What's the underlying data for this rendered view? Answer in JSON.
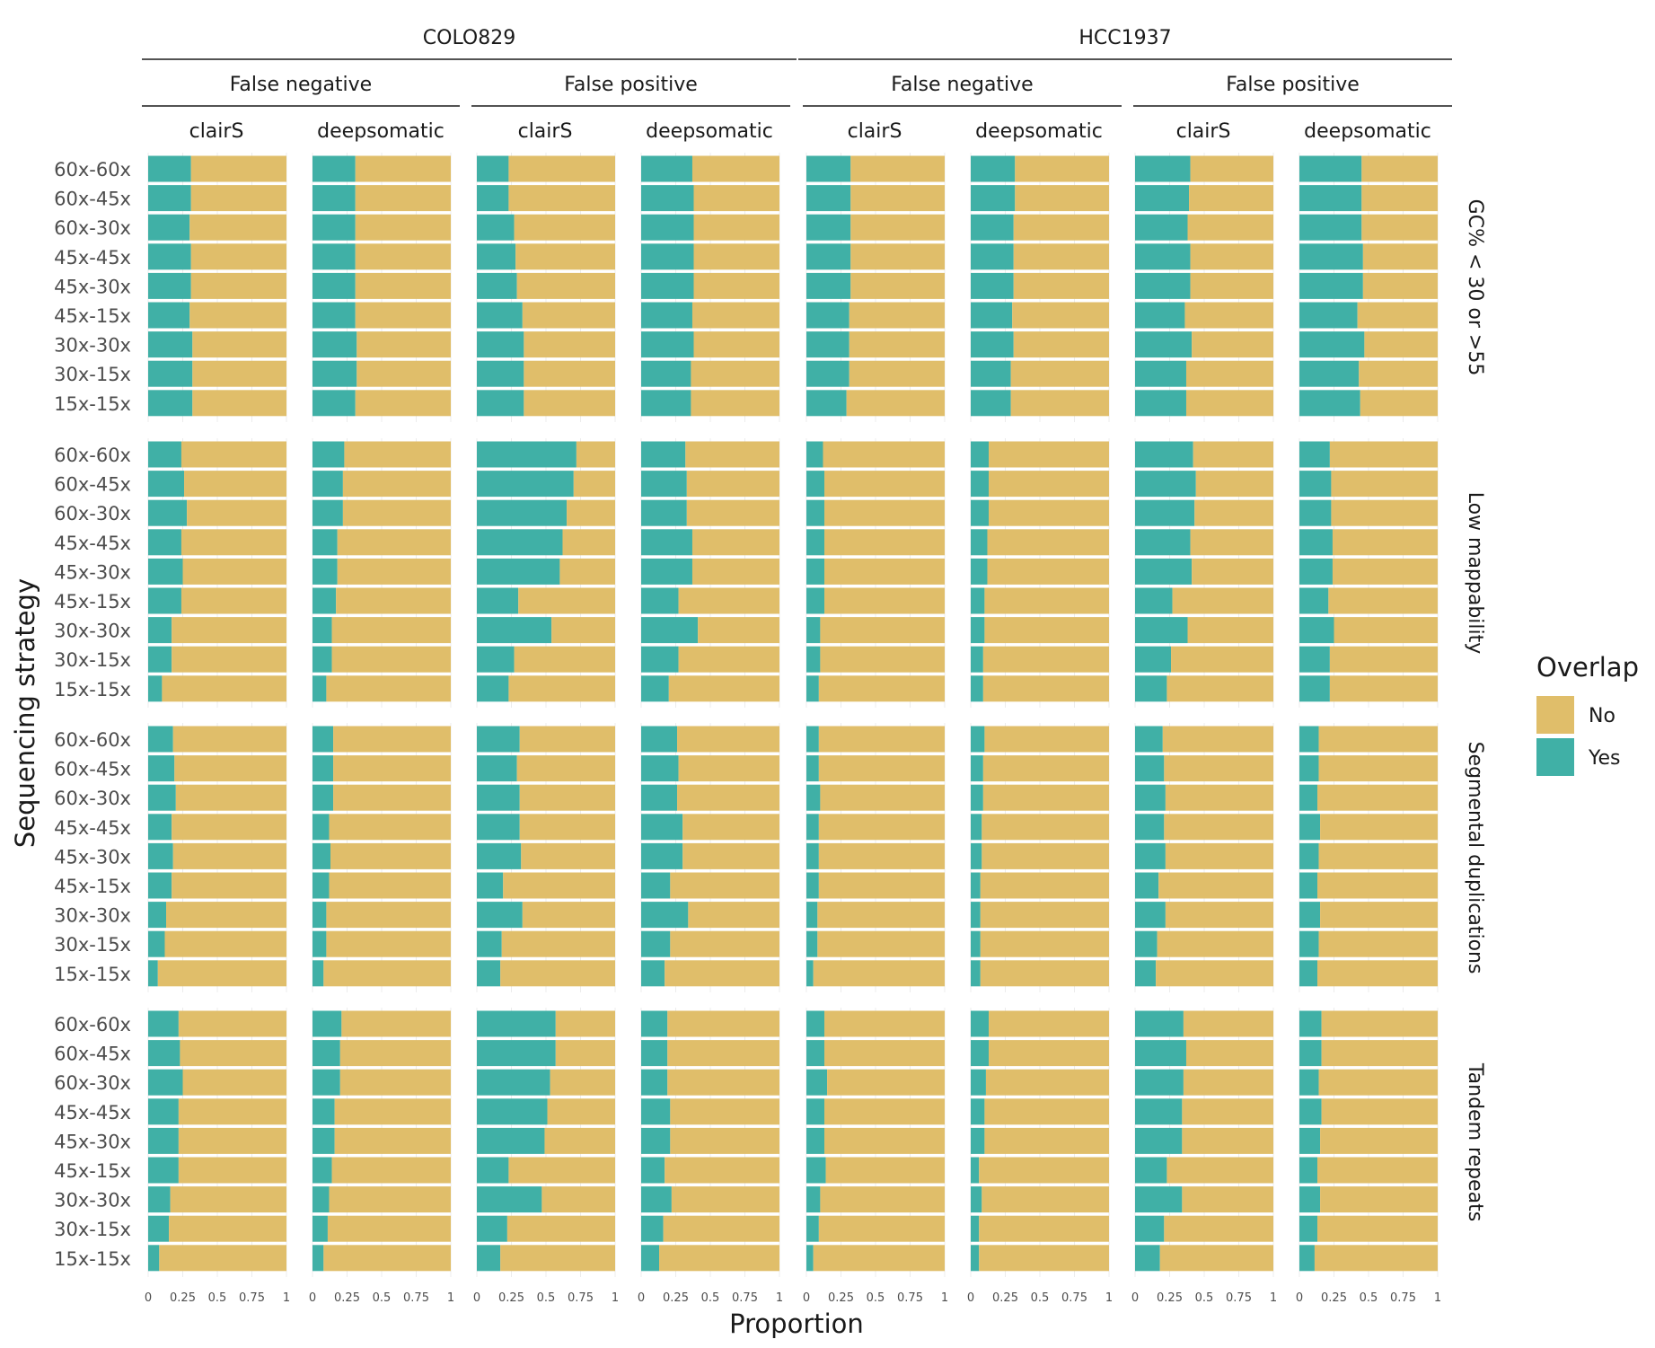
{
  "chart_data": {
    "type": "bar",
    "orientation": "horizontal",
    "stacked": true,
    "xlabel": "Proportion",
    "ylabel": "Sequencing strategy",
    "xlim": [
      0,
      1
    ],
    "x_ticks": [
      "0",
      "0.25",
      "0.5",
      "0.75",
      "1"
    ],
    "categories": [
      "60x-60x",
      "60x-45x",
      "60x-30x",
      "45x-45x",
      "45x-30x",
      "45x-15x",
      "30x-30x",
      "30x-15x",
      "15x-15x"
    ],
    "samples": [
      "COLO829",
      "HCC1937"
    ],
    "error_types": [
      "False negative",
      "False positive"
    ],
    "callers": [
      "clairS",
      "deepsomatic"
    ],
    "regions": [
      "GC% < 30 or >55",
      "Low mappability",
      "Segmental duplications",
      "Tandem repeats"
    ],
    "legend": {
      "title": "Overlap",
      "position": "right",
      "items": [
        {
          "label": "No",
          "color": "#E0BE6A"
        },
        {
          "label": "Yes",
          "color": "#40B0A6"
        }
      ]
    },
    "grid": true,
    "value_note": "Each value is the proportion 'Yes' (overlap); 'No' = 1 - value",
    "panels": [
      {
        "sample": "COLO829",
        "error_type": "False negative",
        "caller": "clairS",
        "values": [
          [
            0.31,
            0.31,
            0.3,
            0.31,
            0.31,
            0.3,
            0.32,
            0.32,
            0.32
          ],
          [
            0.24,
            0.26,
            0.28,
            0.24,
            0.25,
            0.24,
            0.17,
            0.17,
            0.1
          ],
          [
            0.18,
            0.19,
            0.2,
            0.17,
            0.18,
            0.17,
            0.13,
            0.12,
            0.07
          ],
          [
            0.22,
            0.23,
            0.25,
            0.22,
            0.22,
            0.22,
            0.16,
            0.15,
            0.08
          ]
        ]
      },
      {
        "sample": "COLO829",
        "error_type": "False negative",
        "caller": "deepsomatic",
        "values": [
          [
            0.31,
            0.31,
            0.31,
            0.31,
            0.31,
            0.31,
            0.32,
            0.32,
            0.31
          ],
          [
            0.23,
            0.22,
            0.22,
            0.18,
            0.18,
            0.17,
            0.14,
            0.14,
            0.1
          ],
          [
            0.15,
            0.15,
            0.15,
            0.12,
            0.13,
            0.12,
            0.1,
            0.1,
            0.08
          ],
          [
            0.21,
            0.2,
            0.2,
            0.16,
            0.16,
            0.14,
            0.12,
            0.11,
            0.08
          ]
        ]
      },
      {
        "sample": "COLO829",
        "error_type": "False positive",
        "caller": "clairS",
        "values": [
          [
            0.23,
            0.23,
            0.27,
            0.28,
            0.29,
            0.33,
            0.34,
            0.34,
            0.34
          ],
          [
            0.72,
            0.7,
            0.65,
            0.62,
            0.6,
            0.3,
            0.54,
            0.27,
            0.23
          ],
          [
            0.31,
            0.29,
            0.31,
            0.31,
            0.32,
            0.19,
            0.33,
            0.18,
            0.17
          ],
          [
            0.57,
            0.57,
            0.53,
            0.51,
            0.49,
            0.23,
            0.47,
            0.22,
            0.17
          ]
        ]
      },
      {
        "sample": "COLO829",
        "error_type": "False positive",
        "caller": "deepsomatic",
        "values": [
          [
            0.37,
            0.38,
            0.38,
            0.38,
            0.38,
            0.37,
            0.38,
            0.36,
            0.36
          ],
          [
            0.32,
            0.33,
            0.33,
            0.37,
            0.37,
            0.27,
            0.41,
            0.27,
            0.2
          ],
          [
            0.26,
            0.27,
            0.26,
            0.3,
            0.3,
            0.21,
            0.34,
            0.21,
            0.17
          ],
          [
            0.19,
            0.19,
            0.19,
            0.21,
            0.21,
            0.17,
            0.22,
            0.16,
            0.13
          ]
        ]
      },
      {
        "sample": "HCC1937",
        "error_type": "False negative",
        "caller": "clairS",
        "values": [
          [
            0.32,
            0.32,
            0.32,
            0.32,
            0.32,
            0.31,
            0.31,
            0.31,
            0.29
          ],
          [
            0.12,
            0.13,
            0.13,
            0.13,
            0.13,
            0.13,
            0.1,
            0.1,
            0.09
          ],
          [
            0.09,
            0.09,
            0.1,
            0.09,
            0.09,
            0.09,
            0.08,
            0.08,
            0.05
          ],
          [
            0.13,
            0.13,
            0.15,
            0.13,
            0.13,
            0.14,
            0.1,
            0.09,
            0.05
          ]
        ]
      },
      {
        "sample": "HCC1937",
        "error_type": "False negative",
        "caller": "deepsomatic",
        "values": [
          [
            0.32,
            0.32,
            0.31,
            0.31,
            0.31,
            0.3,
            0.31,
            0.29,
            0.29
          ],
          [
            0.13,
            0.13,
            0.13,
            0.12,
            0.12,
            0.1,
            0.1,
            0.09,
            0.09
          ],
          [
            0.1,
            0.09,
            0.09,
            0.08,
            0.08,
            0.07,
            0.07,
            0.07,
            0.07
          ],
          [
            0.13,
            0.13,
            0.11,
            0.1,
            0.1,
            0.06,
            0.08,
            0.06,
            0.06
          ]
        ]
      },
      {
        "sample": "HCC1937",
        "error_type": "False positive",
        "caller": "clairS",
        "values": [
          [
            0.4,
            0.39,
            0.38,
            0.4,
            0.4,
            0.36,
            0.41,
            0.37,
            0.37
          ],
          [
            0.42,
            0.44,
            0.43,
            0.4,
            0.41,
            0.27,
            0.38,
            0.26,
            0.23
          ],
          [
            0.2,
            0.21,
            0.22,
            0.21,
            0.22,
            0.17,
            0.22,
            0.16,
            0.15
          ],
          [
            0.35,
            0.37,
            0.35,
            0.34,
            0.34,
            0.23,
            0.34,
            0.21,
            0.18
          ]
        ]
      },
      {
        "sample": "HCC1937",
        "error_type": "False positive",
        "caller": "deepsomatic",
        "values": [
          [
            0.45,
            0.45,
            0.45,
            0.46,
            0.46,
            0.42,
            0.47,
            0.43,
            0.44
          ],
          [
            0.22,
            0.23,
            0.23,
            0.24,
            0.24,
            0.21,
            0.25,
            0.22,
            0.22
          ],
          [
            0.14,
            0.14,
            0.13,
            0.15,
            0.14,
            0.13,
            0.15,
            0.14,
            0.13
          ],
          [
            0.16,
            0.16,
            0.14,
            0.16,
            0.15,
            0.13,
            0.15,
            0.13,
            0.11
          ]
        ]
      }
    ]
  }
}
